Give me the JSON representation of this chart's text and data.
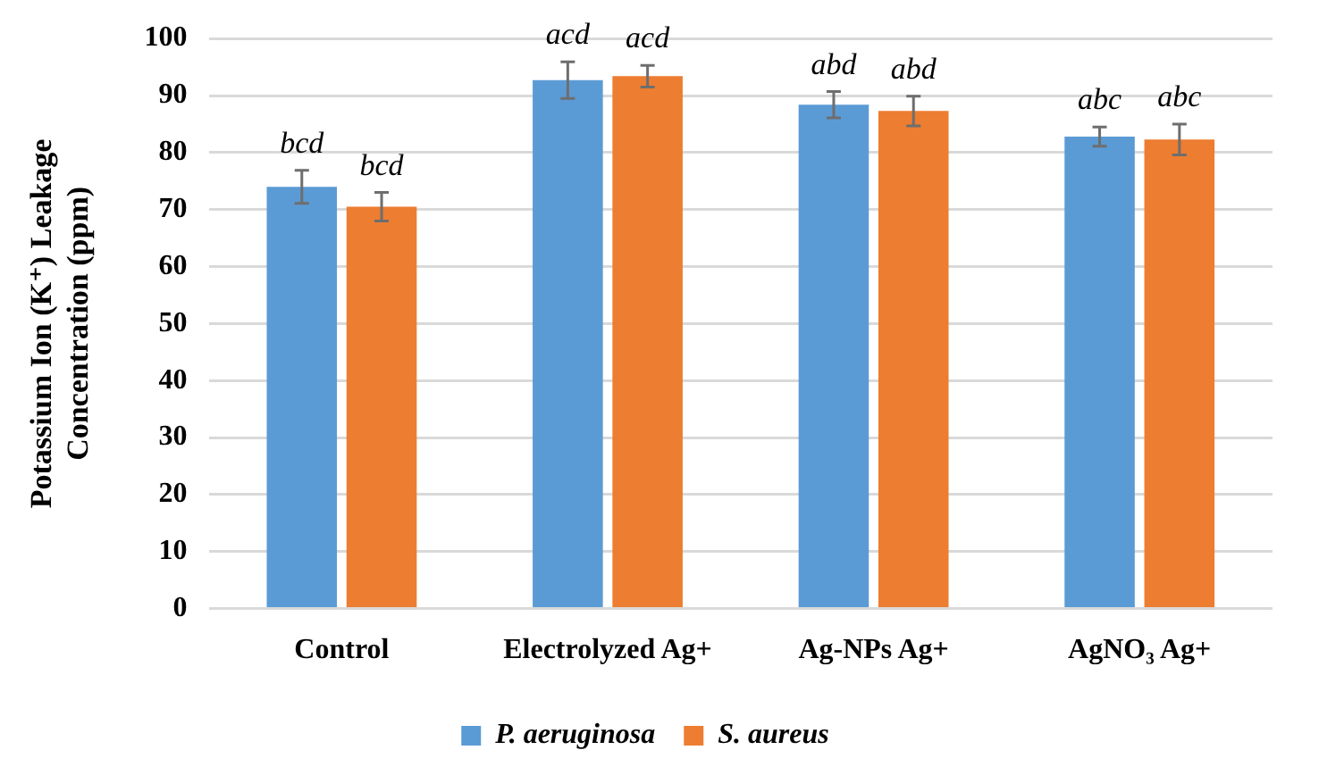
{
  "chart_data": {
    "type": "bar",
    "ylabel": "Potassium Ion (K⁺) Leakage Concentration (ppm)",
    "categories": [
      "Control",
      "Electrolyzed Ag+",
      "Ag-NPs Ag+",
      "AgNO₃ Ag+"
    ],
    "series": [
      {
        "name": "P. aeruginosa",
        "color": "#5b9bd5",
        "values": [
          74.0,
          92.7,
          88.4,
          82.8
        ],
        "errors": [
          2.9,
          3.2,
          2.3,
          1.7
        ]
      },
      {
        "name": "S. aureus",
        "color": "#ed7d31",
        "values": [
          70.5,
          93.4,
          87.3,
          82.3
        ],
        "errors": [
          2.5,
          1.9,
          2.6,
          2.7
        ]
      }
    ],
    "annotations": [
      {
        "text": "bcd",
        "x": "Control",
        "y": 74.0
      },
      {
        "text": "bcd",
        "x": "Control",
        "y": 70.5
      },
      {
        "text": "acd",
        "x": "Electrolyzed Ag+",
        "y": 92.7
      },
      {
        "text": "acd",
        "x": "Electrolyzed Ag+",
        "y": 93.4
      },
      {
        "text": "abd",
        "x": "Ag-NPs Ag+",
        "y": 88.4
      },
      {
        "text": "abd",
        "x": "Ag-NPs Ag+",
        "y": 87.3
      },
      {
        "text": "abc",
        "x": "AgNO₃ Ag+",
        "y": 82.8
      },
      {
        "text": "abc",
        "x": "AgNO₃ Ag+",
        "y": 82.3
      }
    ],
    "ylim": [
      0,
      100
    ],
    "yticks": [
      0,
      10,
      20,
      30,
      40,
      50,
      60,
      70,
      80,
      90,
      100
    ],
    "grid": "y",
    "legend": "bottom"
  }
}
